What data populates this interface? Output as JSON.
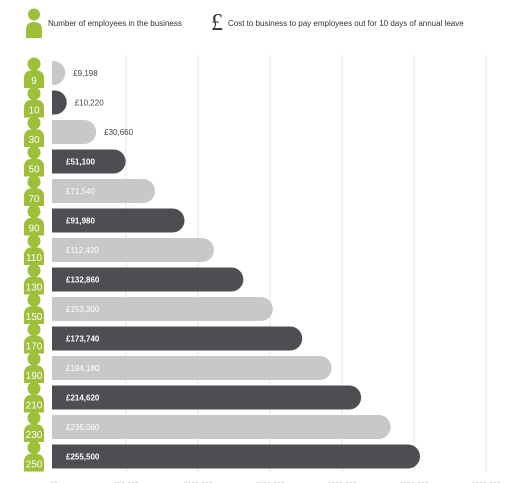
{
  "legend": {
    "employees_label": "Number of employees in the business",
    "cost_symbol": "£",
    "cost_label": "Cost to business to pay employees out for 10 days of annual leave"
  },
  "colors": {
    "person_icon": "#9dbf3a",
    "bar_light": "#c8c8ca",
    "bar_dark": "#4d4e52",
    "grid": "#e4e4e4",
    "value_text_on_dark": "#ffffff",
    "value_text_on_light": "#ffffff",
    "value_text_outside": "#444444"
  },
  "icons": {
    "category_marker": "person-icon",
    "legend_cost": "pound-sign-icon"
  },
  "chart_data": {
    "type": "bar",
    "orientation": "horizontal",
    "categories": [
      "9",
      "10",
      "30",
      "50",
      "70",
      "90",
      "110",
      "130",
      "150",
      "170",
      "190",
      "210",
      "230",
      "250"
    ],
    "values": [
      9198,
      10220,
      30660,
      51100,
      71540,
      91980,
      112420,
      132860,
      153300,
      173740,
      194180,
      214620,
      235060,
      255500
    ],
    "value_labels": [
      "£9,198",
      "£10,220",
      "£30,660",
      "£51,100",
      "£71,540",
      "£91,980",
      "£112,420",
      "£132,860",
      "£153,300",
      "£173,740",
      "£194,180",
      "£214,620",
      "£235,060",
      "£255,500"
    ],
    "bar_shades": [
      "light",
      "dark",
      "light",
      "dark",
      "light",
      "dark",
      "light",
      "dark",
      "light",
      "dark",
      "light",
      "dark",
      "light",
      "dark"
    ],
    "xlim": [
      0,
      300000
    ],
    "grid": true,
    "legend_position": "top"
  }
}
